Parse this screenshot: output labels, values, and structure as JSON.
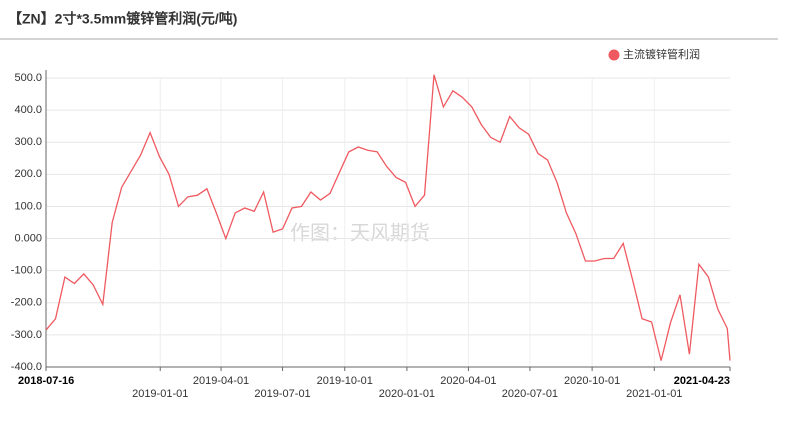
{
  "chart_data": {
    "type": "line",
    "title": "【ZN】2寸*3.5mm镀锌管利润(元/吨)",
    "watermark": "作图：天风期货",
    "legend": "top-right",
    "grid": true,
    "x": [
      "2018-07-16",
      "2018-07-30",
      "2018-08-13",
      "2018-08-27",
      "2018-09-10",
      "2018-09-24",
      "2018-10-08",
      "2018-10-22",
      "2018-11-05",
      "2018-11-19",
      "2018-12-03",
      "2018-12-17",
      "2018-12-31",
      "2019-01-14",
      "2019-01-28",
      "2019-02-11",
      "2019-02-25",
      "2019-03-11",
      "2019-03-25",
      "2019-04-08",
      "2019-04-22",
      "2019-05-06",
      "2019-05-20",
      "2019-06-03",
      "2019-06-17",
      "2019-07-01",
      "2019-07-15",
      "2019-07-29",
      "2019-08-12",
      "2019-08-26",
      "2019-09-09",
      "2019-09-23",
      "2019-10-07",
      "2019-10-21",
      "2019-11-04",
      "2019-11-18",
      "2019-12-02",
      "2019-12-16",
      "2019-12-30",
      "2020-01-13",
      "2020-01-27",
      "2020-02-10",
      "2020-02-24",
      "2020-03-09",
      "2020-03-23",
      "2020-04-06",
      "2020-04-20",
      "2020-05-04",
      "2020-05-18",
      "2020-06-01",
      "2020-06-15",
      "2020-06-29",
      "2020-07-13",
      "2020-07-27",
      "2020-08-10",
      "2020-08-24",
      "2020-09-07",
      "2020-09-21",
      "2020-10-05",
      "2020-10-19",
      "2020-11-02",
      "2020-11-16",
      "2020-11-30",
      "2020-12-14",
      "2020-12-28",
      "2021-01-11",
      "2021-01-25",
      "2021-02-08",
      "2021-02-22",
      "2021-03-08",
      "2021-03-22",
      "2021-04-05",
      "2021-04-19",
      "2021-04-23"
    ],
    "series": [
      {
        "name": "主流镀锌管利润",
        "color": "#ef5a60",
        "values": [
          -285,
          -250,
          -120,
          -140,
          -110,
          -145,
          -205,
          50,
          160,
          210,
          260,
          330,
          255,
          200,
          100,
          130,
          135,
          155,
          80,
          0,
          80,
          95,
          85,
          145,
          20,
          30,
          95,
          100,
          145,
          120,
          140,
          205,
          270,
          285,
          275,
          270,
          225,
          190,
          175,
          100,
          135,
          510,
          410,
          460,
          440,
          410,
          355,
          315,
          300,
          380,
          345,
          325,
          265,
          245,
          175,
          80,
          15,
          -70,
          -70,
          -62,
          -62,
          -15,
          -130,
          -250,
          -260,
          -380,
          -262,
          -175,
          -360,
          -80,
          -120,
          -220,
          -280,
          -380
        ]
      }
    ],
    "xlim": [
      "2018-07-16",
      "2021-04-23"
    ],
    "xticks": [
      "2018-07-16",
      "2019-01-01",
      "2019-04-01",
      "2019-07-01",
      "2019-10-01",
      "2020-01-01",
      "2020-04-01",
      "2020-07-01",
      "2020-10-01",
      "2021-01-01",
      "2021-04-23"
    ],
    "ylim": [
      -400,
      500
    ],
    "yticks": [
      {
        "value": 500,
        "label": "500.0"
      },
      {
        "value": 400,
        "label": "400.0"
      },
      {
        "value": 300,
        "label": "300.0"
      },
      {
        "value": 200,
        "label": "200.0"
      },
      {
        "value": 100,
        "label": "100.0"
      },
      {
        "value": 0,
        "label": "0.000"
      },
      {
        "value": -100,
        "label": "-100.0"
      },
      {
        "value": -200,
        "label": "-200.0"
      },
      {
        "value": -300,
        "label": "-300.0"
      },
      {
        "value": -400,
        "label": "-400.0"
      }
    ]
  }
}
